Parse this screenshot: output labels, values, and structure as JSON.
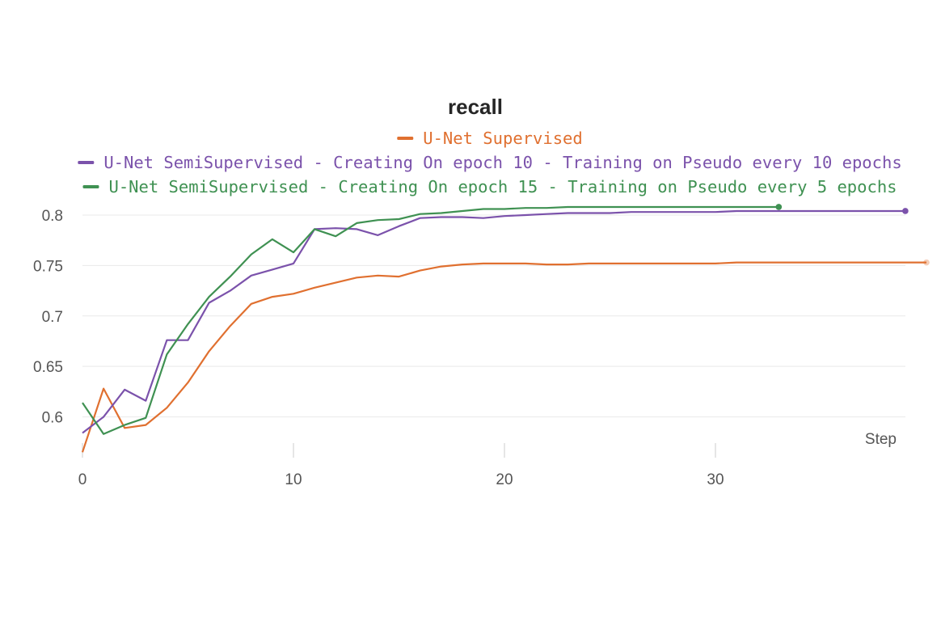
{
  "chart_data": {
    "type": "line",
    "title": "recall",
    "xlabel": "Step",
    "ylabel": "",
    "xlim": [
      0,
      40
    ],
    "ylim": [
      0.562,
      0.82
    ],
    "xticks": [
      0,
      10,
      20,
      30
    ],
    "yticks": [
      0.6,
      0.65,
      0.7,
      0.75,
      0.8
    ],
    "ytick_labels": [
      "0.6",
      "0.65",
      "0.7",
      "0.75",
      "0.8"
    ],
    "grid": "horizontal",
    "legend_placement": "top-center",
    "series": [
      {
        "name": "U-Net Supervised",
        "color": "#e07030",
        "x": [
          0,
          1,
          2,
          3,
          4,
          5,
          6,
          7,
          8,
          9,
          10,
          11,
          12,
          13,
          14,
          15,
          16,
          17,
          18,
          19,
          20,
          21,
          22,
          23,
          24,
          25,
          26,
          27,
          28,
          29,
          30,
          31,
          32,
          33,
          34,
          35,
          36,
          37,
          38,
          39,
          40
        ],
        "values": [
          0.565,
          0.628,
          0.589,
          0.592,
          0.609,
          0.634,
          0.665,
          0.69,
          0.712,
          0.719,
          0.722,
          0.728,
          0.733,
          0.738,
          0.74,
          0.739,
          0.745,
          0.749,
          0.751,
          0.752,
          0.752,
          0.752,
          0.751,
          0.751,
          0.752,
          0.752,
          0.752,
          0.752,
          0.752,
          0.752,
          0.752,
          0.753,
          0.753,
          0.753,
          0.753,
          0.753,
          0.753,
          0.753,
          0.753,
          0.753,
          0.753
        ]
      },
      {
        "name": "U-Net SemiSupervised - Creating On epoch 10 - Training on Pseudo every 10 epochs",
        "color": "#7b52ab",
        "x": [
          0,
          1,
          2,
          3,
          4,
          5,
          6,
          7,
          8,
          9,
          10,
          11,
          12,
          13,
          14,
          15,
          16,
          17,
          18,
          19,
          20,
          21,
          22,
          23,
          24,
          25,
          26,
          27,
          28,
          29,
          30,
          31,
          32,
          33,
          34,
          35,
          36,
          37,
          38,
          39
        ],
        "values": [
          0.584,
          0.6,
          0.627,
          0.616,
          0.676,
          0.676,
          0.713,
          0.725,
          0.74,
          0.746,
          0.752,
          0.786,
          0.787,
          0.786,
          0.78,
          0.789,
          0.797,
          0.798,
          0.798,
          0.797,
          0.799,
          0.8,
          0.801,
          0.802,
          0.802,
          0.802,
          0.803,
          0.803,
          0.803,
          0.803,
          0.803,
          0.804,
          0.804,
          0.804,
          0.804,
          0.804,
          0.804,
          0.804,
          0.804,
          0.804
        ]
      },
      {
        "name": "U-Net SemiSupervised - Creating On epoch 15 - Training on Pseudo every 5 epochs",
        "color": "#3f9152",
        "x": [
          0,
          1,
          2,
          3,
          4,
          5,
          6,
          7,
          8,
          9,
          10,
          11,
          12,
          13,
          14,
          15,
          16,
          17,
          18,
          19,
          20,
          21,
          22,
          23,
          24,
          25,
          26,
          27,
          28,
          29,
          30,
          31,
          32,
          33
        ],
        "values": [
          0.614,
          0.583,
          0.592,
          0.599,
          0.662,
          0.692,
          0.719,
          0.739,
          0.761,
          0.776,
          0.763,
          0.786,
          0.779,
          0.792,
          0.795,
          0.796,
          0.801,
          0.802,
          0.804,
          0.806,
          0.806,
          0.807,
          0.807,
          0.808,
          0.808,
          0.808,
          0.808,
          0.808,
          0.808,
          0.808,
          0.808,
          0.808,
          0.808,
          0.808
        ]
      }
    ]
  }
}
